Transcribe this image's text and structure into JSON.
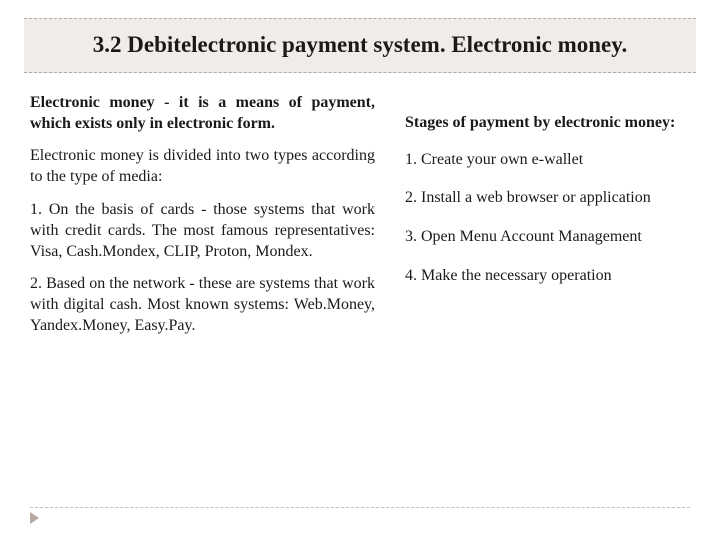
{
  "title": "3.2 Debitelectronic payment system. Electronic money.",
  "left": {
    "p1": "Electronic money - it is a means of payment, which exists only in electronic form.",
    "p2": "Electronic money is divided into two types according to the type of media:",
    "p3": "1. On the basis of cards - those systems that work with credit cards. The most famous representatives: Visa, Cash.Mondex, CLIP, Proton, Mondex.",
    "p4": "2. Based on the network - these are systems that work with digital cash. Most known systems: Web.Money, Yandex.Money, Easy.Pay."
  },
  "right": {
    "heading": "Stages of payment by electronic money:",
    "s1": "1.  Create your own e-wallet",
    "s2": "2. Install a web browser or application",
    "s3": "3. Open Menu Account Management",
    "s4": "4. Make the necessary operation"
  },
  "colors": {
    "title_bg": "#f2ece9",
    "dash_border": "#b5a89e",
    "text": "#1a1a1a",
    "arrow": "#b8aaa0"
  },
  "fonts": {
    "title_size": 23,
    "body_size": 16
  }
}
